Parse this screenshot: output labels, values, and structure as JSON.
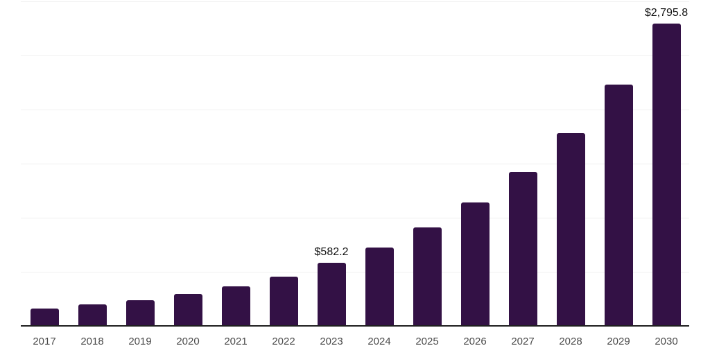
{
  "chart_data": {
    "type": "bar",
    "title": "",
    "xlabel": "",
    "ylabel": "",
    "categories": [
      "2017",
      "2018",
      "2019",
      "2020",
      "2021",
      "2022",
      "2023",
      "2024",
      "2025",
      "2026",
      "2027",
      "2028",
      "2029",
      "2030"
    ],
    "values": [
      160,
      196,
      238,
      292,
      366,
      455,
      582.2,
      725,
      910,
      1140,
      1425,
      1785,
      2230,
      2795.8
    ],
    "ylim": [
      0,
      3000
    ],
    "grid_interval": 500,
    "grid": true,
    "legend_position": "none",
    "bar_color": "#331145",
    "annotations": [
      {
        "category": "2023",
        "label": "$582.2"
      },
      {
        "category": "2030",
        "label": "$2,795.8"
      }
    ]
  }
}
